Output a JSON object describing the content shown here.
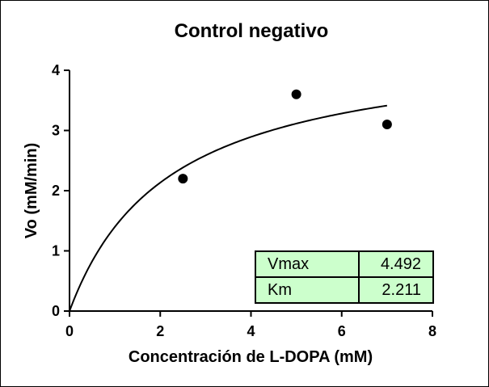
{
  "chart_data": {
    "type": "scatter",
    "title": "Control negativo",
    "xlabel": "Concentración de L-DOPA (mM)",
    "ylabel": "Vo (mM/min)",
    "xlim": [
      0,
      8
    ],
    "ylim": [
      0,
      4
    ],
    "xticks": [
      "0",
      "2",
      "4",
      "6",
      "8"
    ],
    "yticks": [
      "0",
      "1",
      "2",
      "3",
      "4"
    ],
    "grid": false,
    "points": [
      {
        "x": 2.5,
        "y": 2.2
      },
      {
        "x": 5,
        "y": 3.6
      },
      {
        "x": 7,
        "y": 3.1
      }
    ],
    "fit": {
      "model": "michaelis-menten",
      "x_range": [
        0,
        7
      ],
      "parameters": [
        {
          "name": "Vmax",
          "value": "4.492"
        },
        {
          "name": "Km",
          "value": "2.211"
        }
      ]
    }
  }
}
